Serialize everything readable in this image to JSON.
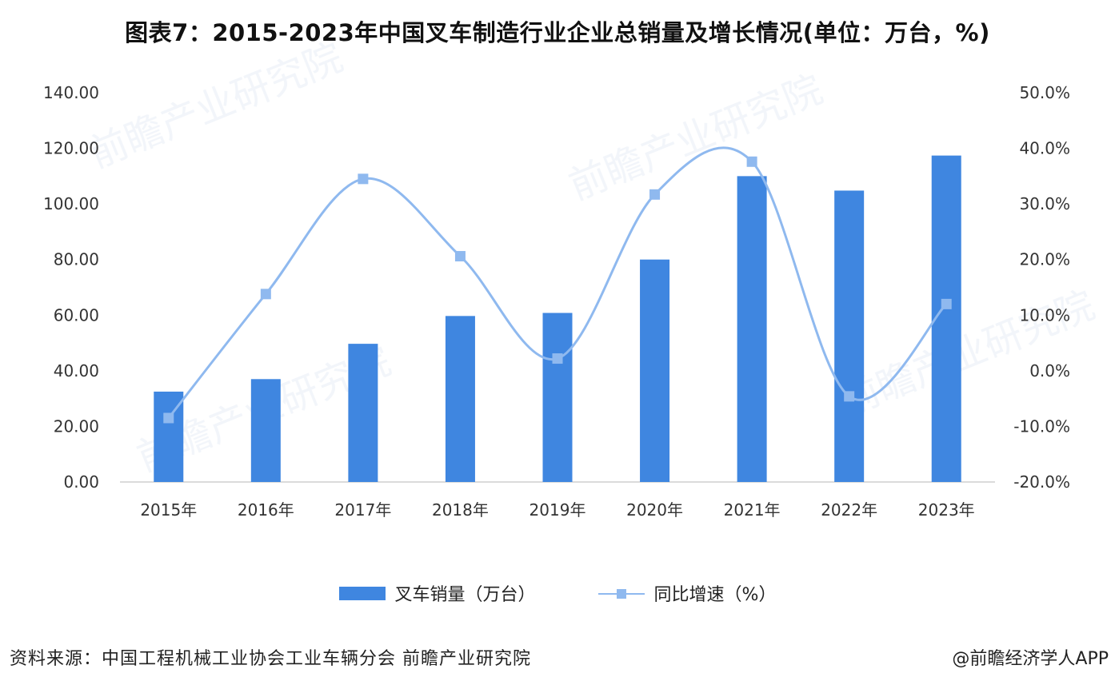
{
  "title": "图表7：2015-2023年中国叉车制造行业企业总销量及增长情况(单位：万台，%)",
  "source": "资料来源：中国工程机械工业协会工业车辆分会 前瞻产业研究院",
  "credit": "@前瞻经济学人APP",
  "colors": {
    "bar": "#3f86e0",
    "line": "#8fb9ef",
    "axis": "#cfcfcf"
  },
  "chart_data": {
    "type": "bar",
    "categories": [
      "2015年",
      "2016年",
      "2017年",
      "2018年",
      "2019年",
      "2020年",
      "2021年",
      "2022年",
      "2023年"
    ],
    "series": [
      {
        "name": "叉车销量（万台）",
        "type": "bar",
        "axis": "left",
        "values": [
          32.5,
          37.0,
          49.7,
          59.7,
          60.8,
          80.0,
          110.0,
          104.8,
          117.4
        ]
      },
      {
        "name": "同比增速（%）",
        "type": "line",
        "axis": "right",
        "smooth": true,
        "values": [
          -8.5,
          13.8,
          34.5,
          20.6,
          2.2,
          31.7,
          37.6,
          -4.6,
          12.0
        ]
      }
    ],
    "y_left": {
      "ylim": [
        0,
        140
      ],
      "ticks": [
        "0.00",
        "20.00",
        "40.00",
        "60.00",
        "80.00",
        "100.00",
        "120.00",
        "140.00"
      ]
    },
    "y_right": {
      "ylim": [
        -20,
        50
      ],
      "ticks": [
        "-20.0%",
        "-10.0%",
        "0.0%",
        "10.0%",
        "20.0%",
        "30.0%",
        "40.0%",
        "50.0%"
      ]
    },
    "legend": "bottom",
    "grid": false
  }
}
